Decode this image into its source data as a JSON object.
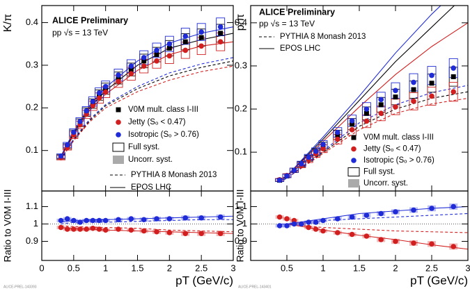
{
  "chart_data": [
    {
      "type": "scatter",
      "y_label": "K/π",
      "label": "ALICE Preliminary",
      "sublabel": "pp √s = 13 TeV",
      "footnote": "ALICE-PREL-143393",
      "xlim": [
        0,
        3
      ],
      "ylim": [
        0.005,
        0.44
      ],
      "yticks": [
        0.1,
        0.2,
        0.3,
        0.4
      ],
      "series": [
        {
          "name": "V0M mult. class I-III",
          "color": "#000000",
          "marker": "square",
          "x": [
            0.3,
            0.4,
            0.5,
            0.6,
            0.7,
            0.8,
            0.9,
            1.0,
            1.2,
            1.4,
            1.6,
            1.8,
            2.0,
            2.25,
            2.5,
            2.8
          ],
          "values": [
            0.085,
            0.11,
            0.14,
            0.165,
            0.19,
            0.21,
            0.23,
            0.245,
            0.27,
            0.29,
            0.31,
            0.325,
            0.34,
            0.355,
            0.365,
            0.375
          ],
          "syst": [
            0.005,
            0.006,
            0.008,
            0.009,
            0.01,
            0.011,
            0.012,
            0.013,
            0.014,
            0.015,
            0.016,
            0.017,
            0.018,
            0.019,
            0.02,
            0.021
          ]
        },
        {
          "name": "Jetty (Sₒ < 0.47)",
          "color": "#d11f1f",
          "marker": "circle",
          "x": [
            0.3,
            0.4,
            0.5,
            0.6,
            0.7,
            0.8,
            0.9,
            1.0,
            1.2,
            1.4,
            1.6,
            1.8,
            2.0,
            2.25,
            2.5,
            2.8
          ],
          "values": [
            0.083,
            0.107,
            0.136,
            0.16,
            0.185,
            0.205,
            0.223,
            0.237,
            0.262,
            0.28,
            0.298,
            0.31,
            0.322,
            0.335,
            0.345,
            0.355
          ],
          "syst": [
            0.005,
            0.006,
            0.008,
            0.009,
            0.01,
            0.011,
            0.012,
            0.013,
            0.014,
            0.015,
            0.016,
            0.017,
            0.018,
            0.019,
            0.02,
            0.021
          ]
        },
        {
          "name": "Isotropic (Sₒ > 0.76)",
          "color": "#1f2bd6",
          "marker": "circle",
          "x": [
            0.3,
            0.4,
            0.5,
            0.6,
            0.7,
            0.8,
            0.9,
            1.0,
            1.2,
            1.4,
            1.6,
            1.8,
            2.0,
            2.25,
            2.5,
            2.8
          ],
          "values": [
            0.087,
            0.113,
            0.143,
            0.168,
            0.193,
            0.215,
            0.235,
            0.25,
            0.277,
            0.298,
            0.318,
            0.335,
            0.35,
            0.368,
            0.378,
            0.39
          ],
          "syst": [
            0.005,
            0.006,
            0.008,
            0.009,
            0.01,
            0.011,
            0.012,
            0.013,
            0.014,
            0.015,
            0.016,
            0.017,
            0.018,
            0.019,
            0.02,
            0.021
          ]
        }
      ],
      "legend_extra": [
        "Full syst.",
        "Uncorr. syst."
      ],
      "models": [
        {
          "name": "PYTHIA 8 Monash 2013",
          "dashed": true,
          "x": [
            0.3,
            0.5,
            0.75,
            1,
            1.5,
            2,
            2.5,
            3
          ],
          "lines": [
            {
              "color": "#000000",
              "values": [
                0.08,
                0.125,
                0.17,
                0.205,
                0.245,
                0.275,
                0.295,
                0.31
              ]
            },
            {
              "color": "#d11f1f",
              "values": [
                0.079,
                0.123,
                0.167,
                0.2,
                0.238,
                0.265,
                0.285,
                0.298
              ]
            },
            {
              "color": "#1f2bd6",
              "values": [
                0.081,
                0.127,
                0.173,
                0.208,
                0.25,
                0.282,
                0.303,
                0.318
              ]
            }
          ]
        },
        {
          "name": "EPOS LHC",
          "dashed": false,
          "x": [
            0.3,
            0.5,
            0.75,
            1,
            1.5,
            2,
            2.5,
            3
          ],
          "lines": [
            {
              "color": "#000000",
              "values": [
                0.085,
                0.14,
                0.2,
                0.24,
                0.3,
                0.34,
                0.36,
                0.375
              ]
            },
            {
              "color": "#d11f1f",
              "values": [
                0.083,
                0.136,
                0.194,
                0.232,
                0.288,
                0.325,
                0.345,
                0.355
              ]
            },
            {
              "color": "#1f2bd6",
              "values": [
                0.087,
                0.144,
                0.205,
                0.248,
                0.31,
                0.352,
                0.375,
                0.39
              ]
            }
          ]
        }
      ]
    },
    {
      "type": "ratio",
      "y_label": "Ratio to V0M I-III",
      "x_label": "pT (GeV/c)",
      "reference_line": 1,
      "xlim": [
        0,
        3
      ],
      "ylim": [
        0.79,
        1.19
      ],
      "xticks": [
        0,
        0.5,
        1,
        1.5,
        2,
        2.5,
        3
      ],
      "yticks": [
        0.9,
        1,
        1.1
      ],
      "series": [
        {
          "color": "#d11f1f",
          "marker": "circle",
          "x": [
            0.3,
            0.4,
            0.5,
            0.6,
            0.7,
            0.8,
            0.9,
            1.0,
            1.2,
            1.4,
            1.6,
            1.8,
            2.0,
            2.25,
            2.5,
            2.8
          ],
          "values": [
            0.98,
            0.97,
            0.97,
            0.97,
            0.97,
            0.975,
            0.97,
            0.965,
            0.97,
            0.965,
            0.96,
            0.955,
            0.95,
            0.945,
            0.945,
            0.945
          ],
          "syst": [
            0.01,
            0.01,
            0.01,
            0.01,
            0.01,
            0.01,
            0.01,
            0.01,
            0.01,
            0.01,
            0.012,
            0.012,
            0.012,
            0.014,
            0.014,
            0.015
          ]
        },
        {
          "color": "#1f2bd6",
          "marker": "circle",
          "x": [
            0.3,
            0.4,
            0.5,
            0.6,
            0.7,
            0.8,
            0.9,
            1.0,
            1.2,
            1.4,
            1.6,
            1.8,
            2.0,
            2.25,
            2.5,
            2.8
          ],
          "values": [
            1.02,
            1.03,
            1.02,
            1.01,
            1.02,
            1.02,
            1.02,
            1.02,
            1.025,
            1.03,
            1.025,
            1.03,
            1.03,
            1.035,
            1.035,
            1.04
          ],
          "syst": [
            0.01,
            0.01,
            0.01,
            0.01,
            0.01,
            0.01,
            0.01,
            0.01,
            0.01,
            0.01,
            0.012,
            0.012,
            0.012,
            0.014,
            0.014,
            0.015
          ]
        }
      ],
      "models": [
        {
          "dashed": true,
          "x": [
            0.3,
            0.5,
            1,
            1.5,
            2,
            2.5,
            3
          ],
          "lines": [
            {
              "color": "#d11f1f",
              "values": [
                0.99,
                0.985,
                0.98,
                0.975,
                0.965,
                0.96,
                0.955
              ]
            },
            {
              "color": "#1f2bd6",
              "values": [
                1.0,
                1.01,
                1.01,
                1.015,
                1.02,
                1.025,
                1.025
              ]
            }
          ]
        },
        {
          "dashed": false,
          "x": [
            0.3,
            0.5,
            1,
            1.5,
            2,
            2.5,
            3
          ],
          "lines": [
            {
              "color": "#d11f1f",
              "values": [
                0.98,
                0.975,
                0.965,
                0.96,
                0.955,
                0.95,
                0.945
              ]
            },
            {
              "color": "#1f2bd6",
              "values": [
                1.01,
                1.02,
                1.025,
                1.03,
                1.035,
                1.04,
                1.045
              ]
            }
          ]
        }
      ]
    },
    {
      "type": "scatter",
      "y_label": "p/π",
      "label": "ALICE Preliminary",
      "sublabel": "pp √s = 13 TeV",
      "footnote": "ALICE-PREL-143401",
      "xlim": [
        0,
        3
      ],
      "ylim": [
        0.01,
        0.44
      ],
      "yticks": [
        0.1,
        0.2,
        0.3,
        0.4
      ],
      "series": [
        {
          "name": "V0M mult. class I-III",
          "color": "#000000",
          "marker": "square",
          "x": [
            0.4,
            0.5,
            0.6,
            0.7,
            0.8,
            0.9,
            1.0,
            1.2,
            1.4,
            1.6,
            1.8,
            2.0,
            2.25,
            2.5,
            2.8
          ],
          "values": [
            0.035,
            0.045,
            0.058,
            0.072,
            0.086,
            0.1,
            0.114,
            0.14,
            0.165,
            0.19,
            0.21,
            0.228,
            0.245,
            0.26,
            0.275
          ],
          "syst": [
            0.003,
            0.004,
            0.005,
            0.006,
            0.007,
            0.008,
            0.009,
            0.011,
            0.013,
            0.015,
            0.017,
            0.018,
            0.02,
            0.021,
            0.022
          ]
        },
        {
          "name": "Jetty (Sₒ < 0.47)",
          "color": "#d11f1f",
          "marker": "circle",
          "x": [
            0.4,
            0.5,
            0.6,
            0.7,
            0.8,
            0.9,
            1.0,
            1.2,
            1.4,
            1.6,
            1.8,
            2.0,
            2.25,
            2.5,
            2.8
          ],
          "values": [
            0.036,
            0.046,
            0.058,
            0.07,
            0.083,
            0.096,
            0.108,
            0.13,
            0.152,
            0.172,
            0.19,
            0.205,
            0.218,
            0.23,
            0.24
          ],
          "syst": [
            0.003,
            0.004,
            0.005,
            0.006,
            0.007,
            0.008,
            0.009,
            0.011,
            0.013,
            0.015,
            0.017,
            0.018,
            0.02,
            0.021,
            0.022
          ]
        },
        {
          "name": "Isotropic (Sₒ > 0.76)",
          "color": "#1f2bd6",
          "marker": "circle",
          "x": [
            0.4,
            0.5,
            0.6,
            0.7,
            0.8,
            0.9,
            1.0,
            1.2,
            1.4,
            1.6,
            1.8,
            2.0,
            2.25,
            2.5,
            2.8
          ],
          "values": [
            0.035,
            0.045,
            0.058,
            0.073,
            0.088,
            0.102,
            0.118,
            0.146,
            0.173,
            0.2,
            0.222,
            0.243,
            0.262,
            0.278,
            0.295
          ],
          "syst": [
            0.003,
            0.004,
            0.005,
            0.006,
            0.007,
            0.008,
            0.009,
            0.011,
            0.013,
            0.015,
            0.017,
            0.018,
            0.02,
            0.021,
            0.022
          ]
        }
      ],
      "legend_extra": [
        "Full syst.",
        "Uncorr. syst."
      ],
      "models": [
        {
          "name": "PYTHIA 8 Monash 2013",
          "dashed": true,
          "x": [
            0.4,
            0.5,
            1,
            1.5,
            2,
            2.5,
            3
          ],
          "lines": [
            {
              "color": "#000000",
              "values": [
                0.03,
                0.04,
                0.1,
                0.16,
                0.2,
                0.225,
                0.24
              ]
            },
            {
              "color": "#d11f1f",
              "values": [
                0.03,
                0.04,
                0.097,
                0.152,
                0.19,
                0.212,
                0.225
              ]
            },
            {
              "color": "#1f2bd6",
              "values": [
                0.03,
                0.04,
                0.103,
                0.168,
                0.21,
                0.238,
                0.255
              ]
            }
          ]
        },
        {
          "name": "EPOS LHC",
          "dashed": false,
          "x": [
            0.4,
            0.5,
            1,
            1.5,
            2,
            2.5,
            3
          ],
          "lines": [
            {
              "color": "#000000",
              "values": [
                0.03,
                0.045,
                0.13,
                0.22,
                0.31,
                0.39,
                0.47
              ]
            },
            {
              "color": "#d11f1f",
              "values": [
                0.03,
                0.045,
                0.125,
                0.205,
                0.28,
                0.345,
                0.4
              ]
            },
            {
              "color": "#1f2bd6",
              "values": [
                0.03,
                0.045,
                0.135,
                0.23,
                0.33,
                0.42,
                0.5
              ]
            }
          ]
        }
      ]
    },
    {
      "type": "ratio",
      "y_label": "Ratio to V0M I-III",
      "x_label": "pT (GeV/c)",
      "reference_line": 1,
      "xlim": [
        0,
        3
      ],
      "ylim": [
        0.79,
        1.19
      ],
      "xticks": [
        0.5,
        1,
        1.5,
        2,
        2.5,
        3
      ],
      "yticks": [
        0.9,
        1,
        1.1
      ],
      "series": [
        {
          "color": "#d11f1f",
          "marker": "circle",
          "x": [
            0.4,
            0.5,
            0.6,
            0.7,
            0.8,
            0.9,
            1.0,
            1.2,
            1.4,
            1.6,
            1.8,
            2.0,
            2.25,
            2.5,
            2.8
          ],
          "values": [
            1.04,
            1.03,
            1.02,
            1.0,
            0.98,
            0.97,
            0.96,
            0.95,
            0.94,
            0.93,
            0.91,
            0.9,
            0.89,
            0.885,
            0.87
          ],
          "syst": [
            0.01,
            0.01,
            0.01,
            0.01,
            0.01,
            0.01,
            0.01,
            0.011,
            0.012,
            0.013,
            0.014,
            0.015,
            0.016,
            0.017,
            0.018
          ]
        },
        {
          "color": "#1f2bd6",
          "marker": "circle",
          "x": [
            0.4,
            0.5,
            0.6,
            0.7,
            0.8,
            0.9,
            1.0,
            1.2,
            1.4,
            1.6,
            1.8,
            2.0,
            2.25,
            2.5,
            2.8
          ],
          "values": [
            0.99,
            0.99,
            1.0,
            1.0,
            1.01,
            1.01,
            1.02,
            1.03,
            1.04,
            1.05,
            1.06,
            1.07,
            1.08,
            1.09,
            1.1
          ],
          "syst": [
            0.01,
            0.01,
            0.01,
            0.01,
            0.01,
            0.01,
            0.01,
            0.011,
            0.012,
            0.013,
            0.014,
            0.015,
            0.016,
            0.017,
            0.018
          ]
        }
      ],
      "models": [
        {
          "dashed": true,
          "x": [
            0.4,
            0.5,
            1,
            1.5,
            2,
            2.5,
            3
          ],
          "lines": [
            {
              "color": "#d11f1f",
              "values": [
                1.0,
                1.0,
                0.98,
                0.97,
                0.96,
                0.955,
                0.95
              ]
            },
            {
              "color": "#1f2bd6",
              "values": [
                1.0,
                1.0,
                1.02,
                1.03,
                1.04,
                1.05,
                1.06
              ]
            }
          ]
        },
        {
          "dashed": false,
          "x": [
            0.4,
            0.5,
            1,
            1.5,
            2,
            2.5,
            3
          ],
          "lines": [
            {
              "color": "#d11f1f",
              "values": [
                1.0,
                1.0,
                0.965,
                0.935,
                0.91,
                0.88,
                0.855
              ]
            },
            {
              "color": "#1f2bd6",
              "values": [
                1.0,
                1.0,
                1.03,
                1.06,
                1.075,
                1.09,
                1.1
              ]
            }
          ]
        }
      ]
    }
  ]
}
